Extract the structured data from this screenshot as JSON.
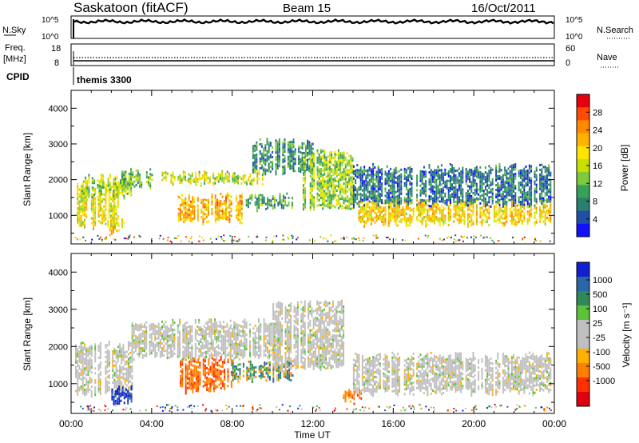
{
  "header": {
    "station": "Saskatoon (fitACF)",
    "beam": "Beam 15",
    "date": "16/Oct/2011"
  },
  "noise_panel": {
    "left_label": "N.Sky",
    "left_ticks": [
      "10^5",
      "10^0"
    ],
    "right_ticks": [
      "10^5",
      "10^0"
    ],
    "right_label": "N.Search"
  },
  "freq_panel": {
    "left_label_1": "Freq.",
    "left_label_2": "[MHz]",
    "left_ticks": [
      "18",
      "8"
    ],
    "right_ticks": [
      "60",
      "0"
    ],
    "right_label": "Nave"
  },
  "cpid": {
    "label": "CPID",
    "value": "themis 3300"
  },
  "x_axis": {
    "label": "Time UT",
    "ticks": [
      "00:00",
      "04:00",
      "08:00",
      "12:00",
      "16:00",
      "20:00",
      "00:00"
    ]
  },
  "y_axis": {
    "label": "Slant Range [km]",
    "ticks": [
      "4000",
      "3000",
      "2000",
      "1000"
    ]
  },
  "power_colorbar": {
    "label": "Power [dB]",
    "ticks": [
      "28",
      "24",
      "20",
      "16",
      "12",
      "8",
      "4"
    ],
    "colors": [
      "#e8000b",
      "#ff4a00",
      "#ff8a00",
      "#ffb300",
      "#ffe400",
      "#c8e000",
      "#7fc93c",
      "#37a05a",
      "#2a7f6e",
      "#1f4fa8",
      "#1010ff"
    ]
  },
  "velocity_colorbar": {
    "label": "Velocity [m s⁻¹]",
    "ticks": [
      "1000",
      "500",
      "100",
      "25",
      "-25",
      "-100",
      "-500",
      "-1000"
    ],
    "colors": [
      "#1020d0",
      "#2a66a8",
      "#2f8a5a",
      "#5cc23a",
      "#bfbfbf",
      "#bfbfbf",
      "#ffb000",
      "#ff8000",
      "#ff3000",
      "#e00010"
    ]
  },
  "chart_data": [
    {
      "type": "heatmap",
      "title": "Power",
      "xlabel": "Time UT",
      "ylabel": "Slant Range [km]",
      "xlim": [
        0,
        24
      ],
      "ylim": [
        200,
        4500
      ],
      "colorbar": {
        "label": "Power [dB]",
        "range": [
          0,
          32
        ]
      },
      "bands": [
        {
          "t0": 0.2,
          "t1": 2.3,
          "r0": 700,
          "r1": 1900,
          "value": 18
        },
        {
          "t0": 0.5,
          "t1": 3.0,
          "r0": 1500,
          "r1": 2100,
          "value": 14
        },
        {
          "t0": 2.5,
          "t1": 4.0,
          "r0": 1800,
          "r1": 2300,
          "value": 12
        },
        {
          "t0": 1.8,
          "t1": 2.6,
          "r0": 500,
          "r1": 900,
          "value": 20
        },
        {
          "t0": 5.3,
          "t1": 8.5,
          "r0": 800,
          "r1": 1600,
          "value": 22
        },
        {
          "t0": 4.5,
          "t1": 9.5,
          "r0": 1900,
          "r1": 2200,
          "value": 16
        },
        {
          "t0": 8.5,
          "t1": 11.0,
          "r0": 1200,
          "r1": 1600,
          "value": 10
        },
        {
          "t0": 9.0,
          "t1": 12.0,
          "r0": 2200,
          "r1": 3100,
          "value": 8
        },
        {
          "t0": 11.5,
          "t1": 14.0,
          "r0": 1200,
          "r1": 2800,
          "value": 14
        },
        {
          "t0": 14.0,
          "t1": 23.8,
          "r0": 750,
          "r1": 1400,
          "value": 20
        },
        {
          "t0": 14.0,
          "t1": 23.8,
          "r0": 1300,
          "r1": 2400,
          "value": 6
        }
      ]
    },
    {
      "type": "heatmap",
      "title": "Velocity",
      "xlabel": "Time UT",
      "ylabel": "Slant Range [km]",
      "xlim": [
        0,
        24
      ],
      "ylim": [
        200,
        4500
      ],
      "colorbar": {
        "label": "Velocity [m s⁻¹]",
        "range": [
          -1000,
          1000
        ]
      },
      "bands": [
        {
          "t0": 0.2,
          "t1": 3.0,
          "r0": 700,
          "r1": 2100,
          "value": 0
        },
        {
          "t0": 2.0,
          "t1": 3.0,
          "r0": 500,
          "r1": 900,
          "value": 800
        },
        {
          "t0": 5.4,
          "t1": 8.0,
          "r0": 800,
          "r1": 1700,
          "value": -400
        },
        {
          "t0": 3.0,
          "t1": 10.5,
          "r0": 1700,
          "r1": 2700,
          "value": 0
        },
        {
          "t0": 8.0,
          "t1": 11.0,
          "r0": 1100,
          "r1": 1600,
          "value": 120
        },
        {
          "t0": 10.0,
          "t1": 13.5,
          "r0": 1400,
          "r1": 3200,
          "value": 0
        },
        {
          "t0": 14.0,
          "t1": 23.8,
          "r0": 750,
          "r1": 1800,
          "value": 0
        },
        {
          "t0": 13.5,
          "t1": 14.5,
          "r0": 500,
          "r1": 800,
          "value": -300
        }
      ]
    }
  ]
}
